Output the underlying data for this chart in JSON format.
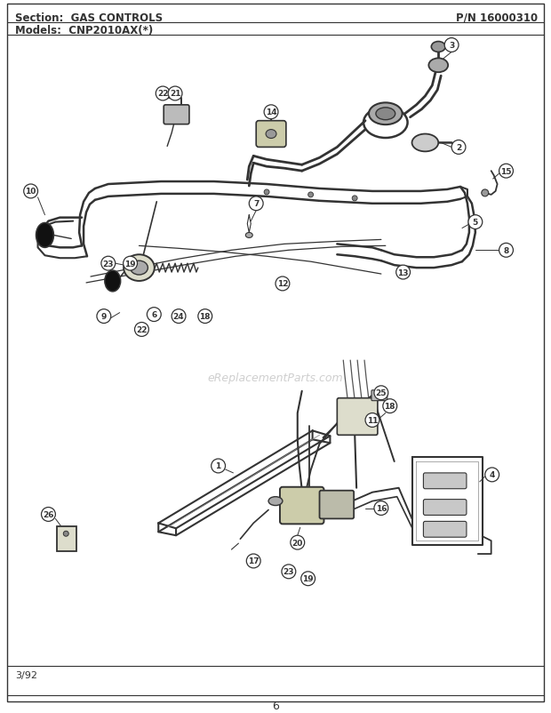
{
  "title_section": "Section:  GAS CONTROLS",
  "title_pn": "P/N 16000310",
  "title_models": "Models:  CNP2010AX(*)",
  "page_number": "6",
  "date": "3/92",
  "bg_color": "#ffffff",
  "border_color": "#222222",
  "text_color": "#111111",
  "lc": "#333333",
  "watermark": "eReplacementParts.com",
  "wm_color": "#bbbbbb"
}
